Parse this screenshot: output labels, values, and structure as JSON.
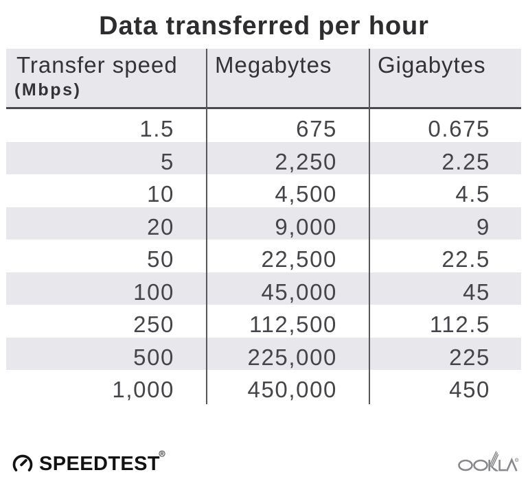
{
  "title": "Data transferred per hour",
  "table": {
    "columns": [
      {
        "label": "Transfer speed",
        "sublabel": "(Mbps)"
      },
      {
        "label": "Megabytes"
      },
      {
        "label": "Gigabytes"
      }
    ],
    "rows": [
      [
        "1.5",
        "675",
        "0.675"
      ],
      [
        "5",
        "2,250",
        "2.25"
      ],
      [
        "10",
        "4,500",
        "4.5"
      ],
      [
        "20",
        "9,000",
        "9"
      ],
      [
        "50",
        "22,500",
        "22.5"
      ],
      [
        "100",
        "45,000",
        "45"
      ],
      [
        "250",
        "112,500",
        "112.5"
      ],
      [
        "500",
        "225,000",
        "225"
      ],
      [
        "1,000",
        "450,000",
        "450"
      ]
    ]
  },
  "footer": {
    "speedtest_label": "SPEEDTEST",
    "speedtest_reg": "®",
    "ookla_label": "OOKLA",
    "ookla_reg": "®"
  },
  "colors": {
    "background": "#ffffff",
    "row_stripe": "#e8e7ec",
    "header_bg": "#e8e7ec",
    "divider": "#57575a",
    "header_underline": "#4a4a4d",
    "title_text": "#2d2d30",
    "cell_text": "#454549",
    "speedtest_black": "#121212",
    "ookla_gray": "#87888c"
  },
  "chart_data": {
    "type": "table",
    "title": "Data transferred per hour",
    "columns": [
      "Transfer speed (Mbps)",
      "Megabytes",
      "Gigabytes"
    ],
    "transfer_speed_mbps": [
      1.5,
      5,
      10,
      20,
      50,
      100,
      250,
      500,
      1000
    ],
    "megabytes": [
      675,
      2250,
      4500,
      9000,
      22500,
      45000,
      112500,
      225000,
      450000
    ],
    "gigabytes": [
      0.675,
      2.25,
      4.5,
      9,
      22.5,
      45,
      112.5,
      225,
      450
    ]
  }
}
